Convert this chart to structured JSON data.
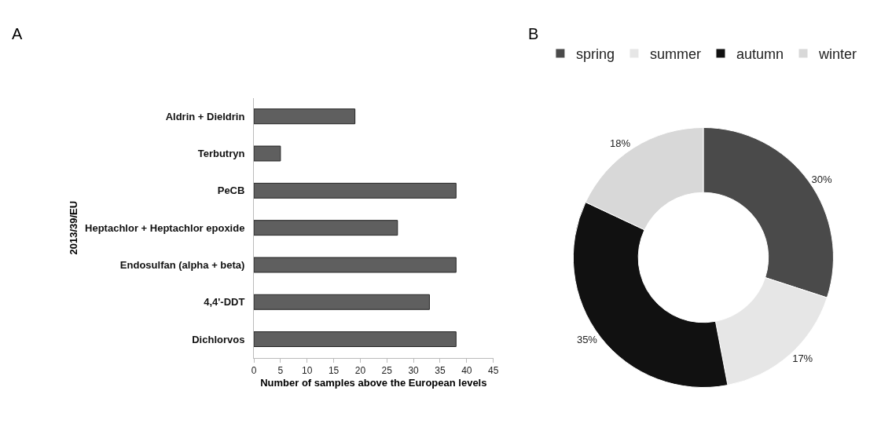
{
  "chart_data": [
    {
      "type": "bar",
      "title": "A",
      "orientation": "horizontal",
      "ylabel": "2013/39/EU",
      "xlabel": "Number of samples above the European levels",
      "categories": [
        "Aldrin + Dieldrin",
        "Terbutryn",
        "PeCB",
        "Heptachlor + Heptachlor epoxide",
        "Endosulfan (alpha + beta)",
        "4,4'-DDT",
        "Dichlorvos"
      ],
      "values": [
        19,
        5,
        38,
        27,
        38,
        33,
        38
      ],
      "color": "#5f5f5f",
      "xlim": [
        0,
        45
      ],
      "xticks": [
        0,
        5,
        10,
        15,
        20,
        25,
        30,
        35,
        40,
        45
      ],
      "grid": false,
      "legend": false
    },
    {
      "type": "donut",
      "title": "B",
      "categories": [
        "spring",
        "summer",
        "autumn",
        "winter"
      ],
      "values": [
        30,
        17,
        35,
        18
      ],
      "colors": [
        "#4a4a4a",
        "#e6e6e6",
        "#111111",
        "#d8d8d8"
      ],
      "value_labels": [
        "30%",
        "17%",
        "35%",
        "18%"
      ],
      "legend": "top"
    }
  ]
}
